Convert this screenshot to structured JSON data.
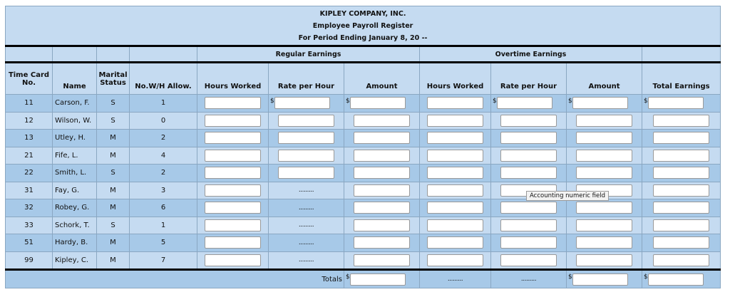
{
  "header": {
    "company": "KIPLEY COMPANY, INC.",
    "title": "Employee Payroll Register",
    "period": "For Period Ending January 8, 20 --"
  },
  "groups": {
    "regular": "Regular Earnings",
    "overtime": "Overtime Earnings"
  },
  "columns": {
    "time_card_1": "Time Card",
    "time_card_2": "No.",
    "name": "Name",
    "marital_1": "Marital",
    "marital_2": "Status",
    "allow": "No.W/H Allow.",
    "reg_hours": "Hours Worked",
    "reg_rate": "Rate per Hour",
    "reg_amount": "Amount",
    "ot_hours": "Hours Worked",
    "ot_rate": "Rate per Hour",
    "ot_amount": "Amount",
    "total": "Total Earnings"
  },
  "currency": "$",
  "dots": ".........",
  "tooltip": "Accounting numeric field",
  "totals_label": "Totals",
  "employees": [
    {
      "card": "11",
      "name": "Carson, F.",
      "status": "S",
      "allow": "1"
    },
    {
      "card": "12",
      "name": "Wilson, W.",
      "status": "S",
      "allow": "0"
    },
    {
      "card": "13",
      "name": "Utley, H.",
      "status": "M",
      "allow": "2"
    },
    {
      "card": "21",
      "name": "Fife, L.",
      "status": "M",
      "allow": "4"
    },
    {
      "card": "22",
      "name": "Smith, L.",
      "status": "S",
      "allow": "2"
    },
    {
      "card": "31",
      "name": "Fay, G.",
      "status": "M",
      "allow": "3"
    },
    {
      "card": "32",
      "name": "Robey, G.",
      "status": "M",
      "allow": "6"
    },
    {
      "card": "33",
      "name": "Schork, T.",
      "status": "S",
      "allow": "1"
    },
    {
      "card": "51",
      "name": "Hardy, B.",
      "status": "M",
      "allow": "5"
    },
    {
      "card": "99",
      "name": "Kipley, C.",
      "status": "M",
      "allow": "7"
    }
  ]
}
